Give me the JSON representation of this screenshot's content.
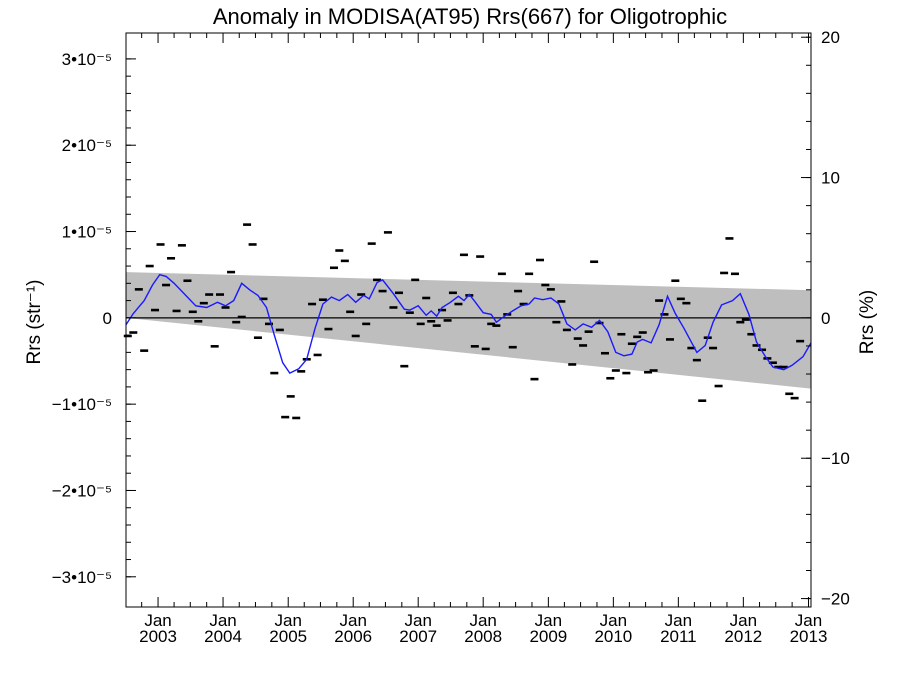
{
  "chart_data": {
    "type": "scatter",
    "title": "Anomaly in MODISA(AT95) Rrs(667) for Oligotrophic",
    "ylabel": "Rrs (str⁻¹)",
    "y2label": "Rrs (%)",
    "ylim": [
      -3.35e-05,
      3.3e-05
    ],
    "y2lim": [
      -20.6,
      20.3
    ],
    "xlim": [
      "2002-07-05",
      "2013-01-15"
    ],
    "y_ticks": [
      {
        "value": 3e-05,
        "label": "3•10⁻⁵"
      },
      {
        "value": 2e-05,
        "label": "2•10⁻⁵"
      },
      {
        "value": 1e-05,
        "label": "1•10⁻⁵"
      },
      {
        "value": 0,
        "label": "0"
      },
      {
        "value": -1e-05,
        "label": "−1•10⁻⁵"
      },
      {
        "value": -2e-05,
        "label": "−2•10⁻⁵"
      },
      {
        "value": -3e-05,
        "label": "−3•10⁻⁵"
      }
    ],
    "y2_ticks": [
      {
        "value": 20,
        "label": "20"
      },
      {
        "value": 10,
        "label": "10"
      },
      {
        "value": 0,
        "label": "0"
      },
      {
        "value": -10,
        "label": "−10"
      },
      {
        "value": -20,
        "label": "−20"
      }
    ],
    "x_ticks": [
      {
        "date": "2003-01-01",
        "month": "Jan",
        "year": "2003"
      },
      {
        "date": "2004-01-01",
        "month": "Jan",
        "year": "2004"
      },
      {
        "date": "2005-01-01",
        "month": "Jan",
        "year": "2005"
      },
      {
        "date": "2006-01-01",
        "month": "Jan",
        "year": "2006"
      },
      {
        "date": "2007-01-01",
        "month": "Jan",
        "year": "2007"
      },
      {
        "date": "2008-01-01",
        "month": "Jan",
        "year": "2008"
      },
      {
        "date": "2009-01-01",
        "month": "Jan",
        "year": "2009"
      },
      {
        "date": "2010-01-01",
        "month": "Jan",
        "year": "2010"
      },
      {
        "date": "2011-01-01",
        "month": "Jan",
        "year": "2011"
      },
      {
        "date": "2012-01-01",
        "month": "Jan",
        "year": "2012"
      },
      {
        "date": "2013-01-01",
        "month": "Jan",
        "year": "2013"
      }
    ],
    "zero_line": 0,
    "trend_band": {
      "upper": [
        [
          "2002-07-05",
          5.3e-06
        ],
        [
          "2013-01-15",
          3.2e-06
        ]
      ],
      "lower": [
        [
          "2002-07-05",
          0.0
        ],
        [
          "2013-01-15",
          -8.2e-06
        ]
      ]
    },
    "monthly_anomalies": [
      [
        "2002-07-15",
        -2.1e-06
      ],
      [
        "2002-08-15",
        -1.7e-06
      ],
      [
        "2002-09-15",
        3.3e-06
      ],
      [
        "2002-10-15",
        -3.8e-06
      ],
      [
        "2002-11-15",
        6e-06
      ],
      [
        "2002-12-15",
        9e-07
      ],
      [
        "2003-01-15",
        8.5e-06
      ],
      [
        "2003-02-15",
        3.8e-06
      ],
      [
        "2003-03-15",
        6.9e-06
      ],
      [
        "2003-04-15",
        8e-07
      ],
      [
        "2003-05-15",
        8.4e-06
      ],
      [
        "2003-06-15",
        4.3e-06
      ],
      [
        "2003-07-15",
        7e-07
      ],
      [
        "2003-08-15",
        -4e-07
      ],
      [
        "2003-09-15",
        1.7e-06
      ],
      [
        "2003-10-15",
        2.7e-06
      ],
      [
        "2003-11-15",
        -3.3e-06
      ],
      [
        "2003-12-15",
        2.7e-06
      ],
      [
        "2004-01-15",
        1.2e-06
      ],
      [
        "2004-02-15",
        5.3e-06
      ],
      [
        "2004-03-15",
        -5e-07
      ],
      [
        "2004-04-15",
        1e-07
      ],
      [
        "2004-05-15",
        1.08e-05
      ],
      [
        "2004-06-15",
        8.5e-06
      ],
      [
        "2004-07-15",
        -2.3e-06
      ],
      [
        "2004-08-15",
        2.2e-06
      ],
      [
        "2004-09-15",
        -7e-07
      ],
      [
        "2004-10-15",
        -6.4e-06
      ],
      [
        "2004-11-15",
        -1.4e-06
      ],
      [
        "2004-12-15",
        -1.15e-05
      ],
      [
        "2005-01-15",
        -9.1e-06
      ],
      [
        "2005-02-15",
        -1.16e-05
      ],
      [
        "2005-03-15",
        -6.2e-06
      ],
      [
        "2005-04-15",
        -4.8e-06
      ],
      [
        "2005-05-15",
        1.6e-06
      ],
      [
        "2005-06-15",
        -4.3e-06
      ],
      [
        "2005-07-15",
        2.1e-06
      ],
      [
        "2005-08-15",
        -1.3e-06
      ],
      [
        "2005-09-15",
        5.8e-06
      ],
      [
        "2005-10-15",
        7.8e-06
      ],
      [
        "2005-11-15",
        6.6e-06
      ],
      [
        "2005-12-15",
        7e-07
      ],
      [
        "2006-01-15",
        -2.1e-06
      ],
      [
        "2006-02-15",
        2.7e-06
      ],
      [
        "2006-03-15",
        -7e-07
      ],
      [
        "2006-04-15",
        8.6e-06
      ],
      [
        "2006-05-15",
        4.4e-06
      ],
      [
        "2006-06-15",
        3.1e-06
      ],
      [
        "2006-07-15",
        9.9e-06
      ],
      [
        "2006-08-15",
        1.2e-06
      ],
      [
        "2006-09-15",
        2.9e-06
      ],
      [
        "2006-10-15",
        -5.6e-06
      ],
      [
        "2006-11-15",
        6e-07
      ],
      [
        "2006-12-15",
        4.4e-06
      ],
      [
        "2007-01-15",
        -7e-07
      ],
      [
        "2007-02-15",
        2.3e-06
      ],
      [
        "2007-03-15",
        -4e-07
      ],
      [
        "2007-04-15",
        -9e-07
      ],
      [
        "2007-05-15",
        9e-07
      ],
      [
        "2007-06-15",
        -3e-07
      ],
      [
        "2007-07-15",
        2.9e-06
      ],
      [
        "2007-08-15",
        1.6e-06
      ],
      [
        "2007-09-15",
        7.3e-06
      ],
      [
        "2007-10-15",
        2.6e-06
      ],
      [
        "2007-11-15",
        -3.3e-06
      ],
      [
        "2007-12-15",
        7.1e-06
      ],
      [
        "2008-01-15",
        -3.6e-06
      ],
      [
        "2008-02-15",
        -7e-07
      ],
      [
        "2008-03-15",
        -9e-07
      ],
      [
        "2008-04-15",
        5.1e-06
      ],
      [
        "2008-05-15",
        4e-07
      ],
      [
        "2008-06-15",
        -3.4e-06
      ],
      [
        "2008-07-15",
        3.1e-06
      ],
      [
        "2008-08-15",
        1.6e-06
      ],
      [
        "2008-09-15",
        5.1e-06
      ],
      [
        "2008-10-15",
        -7.1e-06
      ],
      [
        "2008-11-15",
        6.7e-06
      ],
      [
        "2008-12-15",
        3.8e-06
      ],
      [
        "2009-01-15",
        3.3e-06
      ],
      [
        "2009-02-15",
        -5e-07
      ],
      [
        "2009-03-15",
        1.9e-06
      ],
      [
        "2009-04-15",
        -1.4e-06
      ],
      [
        "2009-05-15",
        -5.4e-06
      ],
      [
        "2009-06-15",
        -2.4e-06
      ],
      [
        "2009-07-15",
        -3.2e-06
      ],
      [
        "2009-08-15",
        -1.6e-06
      ],
      [
        "2009-09-15",
        6.5e-06
      ],
      [
        "2009-10-15",
        -6e-07
      ],
      [
        "2009-11-15",
        -4.1e-06
      ],
      [
        "2009-12-15",
        -7e-06
      ],
      [
        "2010-01-15",
        -6.1e-06
      ],
      [
        "2010-02-15",
        -1.9e-06
      ],
      [
        "2010-03-15",
        -6.4e-06
      ],
      [
        "2010-04-15",
        -3e-06
      ],
      [
        "2010-05-15",
        -2.2e-06
      ],
      [
        "2010-06-15",
        -1.7e-06
      ],
      [
        "2010-07-15",
        -6.3e-06
      ],
      [
        "2010-08-15",
        -6.1e-06
      ],
      [
        "2010-09-15",
        2e-06
      ],
      [
        "2010-10-15",
        4e-07
      ],
      [
        "2010-11-15",
        -2.5e-06
      ],
      [
        "2010-12-15",
        4.3e-06
      ],
      [
        "2011-01-15",
        2.2e-06
      ],
      [
        "2011-02-15",
        1.7e-06
      ],
      [
        "2011-03-15",
        -3.5e-06
      ],
      [
        "2011-04-15",
        -4.9e-06
      ],
      [
        "2011-05-15",
        -9.6e-06
      ],
      [
        "2011-06-15",
        -2.3e-06
      ],
      [
        "2011-07-15",
        -3.5e-06
      ],
      [
        "2011-08-15",
        -7.9e-06
      ],
      [
        "2011-09-15",
        5.2e-06
      ],
      [
        "2011-10-15",
        9.2e-06
      ],
      [
        "2011-11-15",
        5.1e-06
      ],
      [
        "2011-12-15",
        -5e-07
      ],
      [
        "2012-01-15",
        -2e-07
      ],
      [
        "2012-02-15",
        -1.9e-06
      ],
      [
        "2012-03-15",
        -3.2e-06
      ],
      [
        "2012-04-15",
        -3.7e-06
      ],
      [
        "2012-05-15",
        -4.7e-06
      ],
      [
        "2012-06-15",
        -5.2e-06
      ],
      [
        "2012-07-15",
        -5.7e-06
      ],
      [
        "2012-08-15",
        -5.7e-06
      ],
      [
        "2012-09-15",
        -8.8e-06
      ],
      [
        "2012-10-15",
        -9.3e-06
      ],
      [
        "2012-11-15",
        -2.7e-06
      ]
    ],
    "running_mean": [
      [
        "2002-07-05",
        -8e-07
      ],
      [
        "2002-08-15",
        5e-07
      ],
      [
        "2002-10-15",
        2e-06
      ],
      [
        "2002-12-01",
        3.8e-06
      ],
      [
        "2003-01-10",
        5e-06
      ],
      [
        "2003-02-15",
        4.8e-06
      ],
      [
        "2003-04-01",
        4e-06
      ],
      [
        "2003-06-01",
        2.7e-06
      ],
      [
        "2003-08-01",
        1.4e-06
      ],
      [
        "2003-10-01",
        1.2e-06
      ],
      [
        "2003-12-01",
        1.8e-06
      ],
      [
        "2004-01-15",
        1.4e-06
      ],
      [
        "2004-03-01",
        2e-06
      ],
      [
        "2004-04-15",
        4e-06
      ],
      [
        "2004-06-01",
        3.2e-06
      ],
      [
        "2004-07-15",
        2.6e-06
      ],
      [
        "2004-09-01",
        1.2e-06
      ],
      [
        "2004-10-15",
        -2e-06
      ],
      [
        "2004-12-01",
        -5.2e-06
      ],
      [
        "2005-01-10",
        -6.4e-06
      ],
      [
        "2005-03-01",
        -5.9e-06
      ],
      [
        "2005-04-15",
        -4.8e-06
      ],
      [
        "2005-06-01",
        -1.2e-06
      ],
      [
        "2005-07-15",
        1.6e-06
      ],
      [
        "2005-09-01",
        2.4e-06
      ],
      [
        "2005-10-15",
        2e-06
      ],
      [
        "2005-12-01",
        2.7e-06
      ],
      [
        "2006-01-15",
        1.8e-06
      ],
      [
        "2006-03-01",
        2.6e-06
      ],
      [
        "2006-04-01",
        2.2e-06
      ],
      [
        "2006-05-15",
        4.1e-06
      ],
      [
        "2006-06-15",
        4.4e-06
      ],
      [
        "2006-08-15",
        2.8e-06
      ],
      [
        "2006-10-15",
        1e-06
      ],
      [
        "2006-11-15",
        9e-07
      ],
      [
        "2007-01-01",
        1.4e-06
      ],
      [
        "2007-02-15",
        3e-07
      ],
      [
        "2007-03-15",
        8e-07
      ],
      [
        "2007-04-15",
        2e-07
      ],
      [
        "2007-05-15",
        1.2e-06
      ],
      [
        "2007-07-01",
        1.8e-06
      ],
      [
        "2007-08-15",
        2.5e-06
      ],
      [
        "2007-09-15",
        2e-06
      ],
      [
        "2007-10-15",
        2.7e-06
      ],
      [
        "2007-11-15",
        1.9e-06
      ],
      [
        "2008-01-01",
        6e-07
      ],
      [
        "2008-02-15",
        4e-07
      ],
      [
        "2008-03-15",
        -5e-07
      ],
      [
        "2008-05-01",
        2e-07
      ],
      [
        "2008-06-15",
        8e-07
      ],
      [
        "2008-08-01",
        1.4e-06
      ],
      [
        "2008-09-15",
        1.6e-06
      ],
      [
        "2008-10-15",
        2.3e-06
      ],
      [
        "2008-12-01",
        2.1e-06
      ],
      [
        "2009-01-15",
        2.3e-06
      ],
      [
        "2009-03-01",
        1.6e-06
      ],
      [
        "2009-04-15",
        -7e-07
      ],
      [
        "2009-06-01",
        -1.4e-06
      ],
      [
        "2009-07-15",
        -7e-07
      ],
      [
        "2009-09-01",
        -1.1e-06
      ],
      [
        "2009-10-15",
        -3e-07
      ],
      [
        "2009-12-01",
        -1.6e-06
      ],
      [
        "2010-01-15",
        -4e-06
      ],
      [
        "2010-03-01",
        -4.4e-06
      ],
      [
        "2010-04-15",
        -4.2e-06
      ],
      [
        "2010-05-15",
        -2.8e-06
      ],
      [
        "2010-06-15",
        -2.5e-06
      ],
      [
        "2010-08-01",
        -2.9e-06
      ],
      [
        "2010-09-15",
        -8e-07
      ],
      [
        "2010-11-01",
        2.5e-06
      ],
      [
        "2010-12-15",
        5e-07
      ],
      [
        "2011-02-01",
        -1.2e-06
      ],
      [
        "2011-04-15",
        -4e-06
      ],
      [
        "2011-06-01",
        -3.2e-06
      ],
      [
        "2011-07-15",
        -5e-07
      ],
      [
        "2011-09-01",
        1.5e-06
      ],
      [
        "2011-11-01",
        2e-06
      ],
      [
        "2011-12-15",
        2.8e-06
      ],
      [
        "2012-02-01",
        4e-07
      ],
      [
        "2012-03-15",
        -2.8e-06
      ],
      [
        "2012-05-01",
        -4.4e-06
      ],
      [
        "2012-06-15",
        -5.7e-06
      ],
      [
        "2012-08-15",
        -6e-06
      ],
      [
        "2012-10-01",
        -5.5e-06
      ],
      [
        "2012-12-01",
        -4.5e-06
      ],
      [
        "2013-01-15",
        -2.9e-06
      ]
    ]
  }
}
